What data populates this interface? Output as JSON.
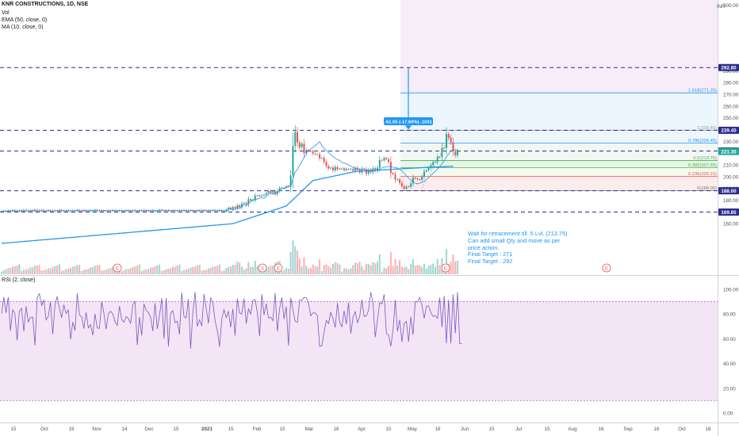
{
  "header": {
    "title": "KNR CONSTRUCTIONS, 1D, NSE",
    "vol": "Vol",
    "ema": "EMA (50, close, 0)",
    "ma": "MA (10, close, 0)",
    "currency": "INR"
  },
  "rsi_label": "RSI (2, close)",
  "measure_label": "-51.55 (-17.60%) -1031",
  "note": {
    "line1": "Wait for retracement till .5 Lvl. (213.75)",
    "line2": "Can add small Qty and move as per",
    "line3": "price action.",
    "line4": "Final Target :  271",
    "line5": "Final Target :  292"
  },
  "colors": {
    "up": "#26a69a",
    "down": "#ef5350",
    "ema": "#2196f3",
    "ma": "#2196f3",
    "level_line": "#2b2b8c",
    "rsi": "#7e57c2",
    "rsi_fill": "#f3e5f5",
    "fib_top_zone": "#f3e5f5",
    "fib_upper_zone": "#e3f2fd",
    "fib_mid_zone": "#e8f5e9",
    "fib_low_zone": "#fdecec"
  },
  "price_axis": {
    "ticks": [
      "290.00",
      "280.00",
      "270.00",
      "260.00",
      "250.00",
      "240.00",
      "230.00",
      "220.00",
      "210.00",
      "200.00",
      "190.00",
      "180.00",
      "170.00",
      "160.00"
    ],
    "tick_values": [
      290,
      280,
      270,
      260,
      250,
      240,
      230,
      220,
      210,
      200,
      190,
      180,
      170,
      160
    ],
    "top_cut": "300.00"
  },
  "price_labels": [
    {
      "text": "292.80",
      "value": 292.8,
      "color": "#2b2b8c"
    },
    {
      "text": "239.45",
      "value": 239.45,
      "color": "#2b2b8c"
    },
    {
      "text": "221.80",
      "value": 221.8,
      "color": "#2b2b8c"
    },
    {
      "text": "221.35",
      "value": 221.35,
      "color": "#26a69a"
    },
    {
      "text": "188.00",
      "value": 188.0,
      "color": "#2b2b8c"
    },
    {
      "text": "169.85",
      "value": 169.85,
      "color": "#2b2b8c"
    }
  ],
  "fib_levels": [
    {
      "text": "1.618(271.25)",
      "value": 271.25,
      "color": "#2196f3"
    },
    {
      "text": "1(239.45)",
      "value": 239.45,
      "color": "#9e9e9e"
    },
    {
      "text": "0.786(228.45)",
      "value": 228.45,
      "color": "#2196f3"
    },
    {
      "text": "0.5(213.75)",
      "value": 213.75,
      "color": "#4caf50"
    },
    {
      "text": "0.382(207.65)",
      "value": 207.65,
      "color": "#4caf50"
    },
    {
      "text": "0.236(200.15)",
      "value": 200.15,
      "color": "#ef5350"
    },
    {
      "text": "0(188.00)",
      "value": 188.0,
      "color": "#757575"
    }
  ],
  "rsi_axis": {
    "ticks": [
      "100.00",
      "80.00",
      "60.00",
      "40.00",
      "20.00",
      "0.00"
    ],
    "tick_values": [
      100,
      80,
      60,
      40,
      20,
      0
    ],
    "band_upper": 90,
    "band_lower": 10
  },
  "time_axis": {
    "labels": [
      "15",
      "Oct",
      "19",
      "Nov",
      "14",
      "Dec",
      "15",
      "2021",
      "15",
      "Feb",
      "15",
      "Mar",
      "16",
      "Apr",
      "15",
      "May",
      "18",
      "Jun",
      "15",
      "Jul",
      "15",
      "Aug",
      "16",
      "Sep",
      "16",
      "Oct",
      "18"
    ]
  },
  "events": {
    "glyph": "E",
    "split_glyph": "S"
  },
  "chart_data": {
    "type": "candlestick",
    "title": "KNR CONSTRUCTIONS, 1D, NSE",
    "ylim": [
      152,
      300
    ],
    "closes": [
      170.5,
      171.0,
      170.4,
      171.2,
      170.8,
      171.6,
      171.1,
      170.6,
      171.4,
      170.9,
      171.7,
      171.2,
      170.7,
      171.5,
      171.0,
      171.8,
      171.3,
      170.9,
      171.6,
      171.1,
      170.8,
      171.5,
      171.2,
      170.6,
      171.3,
      170.9,
      171.7,
      171.1,
      170.7,
      171.4,
      171.0,
      170.6,
      171.3,
      170.8,
      171.6,
      171.2,
      170.7,
      171.5,
      171.0,
      170.6,
      171.4,
      171.0,
      171.8,
      171.2,
      170.8,
      171.5,
      171.0,
      170.7,
      171.3,
      170.9,
      171.6,
      171.1,
      170.8,
      171.4,
      171.0,
      170.7,
      171.5,
      171.2,
      170.8,
      171.4,
      171.0,
      170.6,
      171.3,
      170.9,
      171.6,
      171.1,
      170.7,
      171.4,
      171.0,
      170.6,
      171.2,
      171.8,
      171.3,
      170.9,
      171.5,
      171.0,
      170.7,
      171.4,
      171.1,
      170.6,
      171.3,
      170.9,
      171.6,
      171.2,
      170.8,
      171.5,
      171.0,
      170.7,
      171.3,
      170.9,
      171.6,
      171.1,
      170.8,
      171.4,
      170.9,
      171.6,
      171.2,
      170.8,
      171.5,
      171.1,
      170.7,
      172.0,
      173.5,
      172.2,
      174.1,
      172.8,
      175.6,
      173.9,
      176.9,
      177.7,
      176.5,
      180.8,
      179.7,
      180.2,
      183.9,
      184.0,
      183.3,
      183.9,
      184.6,
      186.1,
      187.8,
      186.2,
      187.5,
      185.0,
      187.7,
      190.2,
      189.7,
      190.5,
      191.8,
      191.4,
      201.0,
      226.0,
      238.0,
      229.0,
      225.0,
      228.0,
      220.0,
      222.5,
      222.0,
      221.6,
      219.6,
      219.0,
      219.0,
      215.5,
      216.0,
      212.5,
      209.0,
      207.0,
      207.6,
      205.3,
      208.2,
      206.3,
      206.8,
      207.0,
      205.4,
      206.6,
      206.5,
      206.7,
      205.1,
      207.6,
      205.8,
      203.6,
      206.8,
      206.2,
      202.6,
      205.7,
      203.7,
      207.1,
      204.9,
      207.6,
      214.1,
      213.9,
      215.9,
      214.8,
      212.6,
      203.1,
      202.1,
      197.4,
      197.8,
      194.7,
      191.7,
      189.6,
      191.6,
      191.4,
      194.2,
      199.2,
      198.4,
      197.6,
      197.3,
      200.1,
      204.4,
      205.4,
      207.5,
      209.8,
      212.4,
      212.6,
      216.9,
      216.6,
      224.4,
      224.3,
      236.4,
      233.2,
      229.2,
      221.5,
      218.1,
      221.35
    ],
    "ema50": [
      143.2,
      143.4,
      143.5,
      143.7,
      143.8,
      144.0,
      144.2,
      144.3,
      144.5,
      144.7,
      144.8,
      145.0,
      145.1,
      145.3,
      145.5,
      145.6,
      145.8,
      146.0,
      146.1,
      146.3,
      146.4,
      146.6,
      146.8,
      146.9,
      147.1,
      147.2,
      147.4,
      147.6,
      147.7,
      147.9,
      148.0,
      148.2,
      148.4,
      148.5,
      148.7,
      148.9,
      149.0,
      149.2,
      149.3,
      149.5,
      149.7,
      149.8,
      150.0,
      150.1,
      150.3,
      150.5,
      150.6,
      150.8,
      150.9,
      151.1,
      151.3,
      151.4,
      151.6,
      151.8,
      151.9,
      152.1,
      152.2,
      152.4,
      152.6,
      152.7,
      152.9,
      153.0,
      153.2,
      153.4,
      153.5,
      153.7,
      153.8,
      154.0,
      154.2,
      154.3,
      154.5,
      154.7,
      154.8,
      155.0,
      155.1,
      155.3,
      155.5,
      155.6,
      155.8,
      155.9,
      156.1,
      156.3,
      156.4,
      156.6,
      156.7,
      156.9,
      157.1,
      157.2,
      157.4,
      157.6,
      157.7,
      157.9,
      158.0,
      158.2,
      158.4,
      158.5,
      158.7,
      158.8,
      159.0,
      159.2,
      159.3,
      159.5,
      159.7,
      159.8,
      160.0,
      160.6,
      161.2,
      161.9,
      162.5,
      163.1,
      163.7,
      164.4,
      165.0,
      165.6,
      166.2,
      166.9,
      167.5,
      168.1,
      168.8,
      169.4,
      170.0,
      170.6,
      171.3,
      171.9,
      172.5,
      173.1,
      173.8,
      174.4,
      175.0,
      176.8,
      178.6,
      180.4,
      182.2,
      184.0,
      185.9,
      187.7,
      189.5,
      191.3,
      193.1,
      194.9,
      196.7,
      197.1,
      197.5,
      197.9,
      198.3,
      198.7,
      199.1,
      199.5,
      199.9,
      200.3,
      200.7,
      201.1,
      201.5,
      201.9,
      202.3,
      202.7,
      203.1,
      203.5,
      203.9,
      204.3,
      204.5,
      204.6,
      204.7,
      204.8,
      204.9,
      205.0,
      205.2,
      205.3,
      205.4,
      205.5,
      205.6,
      205.7,
      205.8,
      205.9,
      206.0,
      206.1,
      206.2,
      206.4,
      206.5,
      206.6,
      206.7,
      206.8,
      206.9,
      207.0,
      207.1,
      207.2,
      207.3,
      207.4,
      207.5,
      207.6,
      207.7,
      207.8,
      207.8,
      207.9,
      208.0,
      208.1,
      208.2,
      208.3,
      208.4,
      208.5,
      208.6,
      208.7,
      208.8,
      208.8
    ],
    "ma10": [
      170.5,
      170.6,
      170.5,
      170.7,
      170.6,
      170.8,
      170.7,
      170.6,
      170.8,
      170.7,
      170.9,
      170.8,
      170.7,
      170.9,
      170.8,
      171.0,
      170.9,
      170.8,
      170.9,
      170.8,
      170.9,
      170.8,
      170.9,
      170.8,
      170.9,
      171.0,
      170.9,
      171.0,
      170.9,
      171.0,
      170.9,
      171.0,
      170.9,
      171.0,
      171.1,
      171.0,
      170.9,
      171.0,
      171.1,
      171.0,
      170.9,
      171.0,
      171.1,
      171.0,
      170.9,
      171.0,
      171.1,
      171.0,
      171.1,
      171.0,
      170.9,
      171.0,
      171.1,
      171.0,
      170.9,
      171.0,
      171.1,
      171.0,
      171.1,
      171.0,
      170.9,
      171.0,
      171.1,
      171.0,
      170.9,
      171.0,
      171.1,
      171.0,
      171.1,
      171.0,
      171.1,
      171.0,
      171.1,
      171.2,
      171.1,
      171.0,
      171.1,
      171.2,
      171.1,
      171.0,
      171.1,
      171.2,
      171.1,
      171.0,
      171.1,
      171.2,
      171.1,
      171.0,
      171.1,
      171.0,
      171.2,
      171.1,
      171.0,
      171.1,
      171.0,
      171.2,
      171.1,
      171.0,
      171.1,
      171.0,
      171.0,
      170.3,
      171.6,
      173.0,
      171.5,
      172.1,
      173.5,
      172.8,
      174.4,
      176.0,
      175.0,
      177.5,
      178.4,
      180.5,
      180.0,
      181.1,
      181.6,
      182.0,
      181.6,
      183.0,
      184.9,
      186.3,
      184.9,
      186.1,
      186.7,
      188.7,
      190.5,
      190.0,
      190.6,
      192.2,
      191.6,
      198.0,
      204.0,
      206.3,
      209.8,
      213.0,
      216.3,
      219.5,
      222.6,
      223.7,
      224.8,
      226.3,
      228.0,
      229.8,
      226.5,
      224.1,
      222.5,
      220.6,
      218.7,
      217.0,
      215.5,
      214.6,
      213.9,
      212.2,
      211.5,
      211.0,
      209.8,
      209.0,
      208.1,
      207.0,
      206.5,
      206.3,
      206.6,
      206.1,
      205.9,
      205.4,
      205.8,
      205.4,
      205.4,
      205.4,
      206.5,
      207.4,
      207.9,
      208.3,
      208.7,
      208.6,
      208.0,
      207.7,
      207.3,
      206.2,
      204.8,
      202.9,
      200.6,
      198.7,
      197.1,
      195.1,
      194.4,
      193.9,
      194.4,
      195.0,
      196.0,
      197.5,
      199.2,
      201.0,
      203.0,
      204.5,
      206.4,
      208.5,
      211.0,
      213.5,
      216.8,
      219.2,
      221.6,
      222.9,
      222.6,
      222.9
    ],
    "rsi": [
      80.3,
      93.7,
      80.9,
      93.7,
      66.4,
      83.3,
      80.3,
      58.7,
      82.1,
      84.6,
      66.0,
      86.2,
      73.5,
      77.3,
      77.6,
      54.6,
      93.2,
      96.4,
      86.9,
      91.4,
      75.2,
      78.0,
      89.6,
      63.7,
      86.8,
      94.2,
      84.7,
      76.9,
      87.4,
      80.4,
      83.2,
      59.6,
      73.5,
      66.6,
      96.7,
      79.2,
      77.7,
      68.2,
      81.4,
      68.7,
      71.4,
      62.9,
      80.2,
      68.7,
      68.3,
      90.0,
      80.7,
      67.7,
      80.2,
      82.2,
      80.0,
      73.7,
      70.9,
      86.3,
      75.4,
      73.4,
      77.9,
      76.3,
      72.5,
      87.7,
      90.1,
      54.9,
      77.5,
      62.6,
      88.1,
      83.2,
      81.2,
      77.5,
      66.2,
      88.6,
      67.8,
      79.0,
      92.9,
      60.0,
      92.9,
      53.7,
      80.8,
      82.7,
      72.9,
      74.1,
      63.6,
      97.4,
      77.9,
      76.7,
      91.9,
      52.0,
      80.8,
      97.8,
      70.0,
      75.3,
      70.2,
      95.9,
      84.3,
      72.4,
      93.0,
      89.1,
      74.4,
      66.6,
      53.5,
      76.1,
      83.4,
      77.1,
      82.2,
      69.3,
      84.2,
      62.4,
      92.5,
      80.9,
      79.9,
      92.5,
      72.3,
      84.1,
      79.9,
      91.2,
      91.6,
      80.9,
      62.1,
      95.9,
      79.2,
      88.4,
      76.7,
      77.4,
      74.6,
      96.8,
      66.1,
      84.0,
      93.3,
      75.9,
      86.0,
      54.4,
      93.1,
      83.2,
      73.9,
      73.3,
      91.3,
      90.9,
      93.4,
      93.1,
      88.7,
      78.6,
      80.8,
      80.8,
      78.6,
      53.9,
      54.1,
      65.3,
      74.7,
      72.1,
      81.4,
      76.6,
      69.0,
      88.8,
      73.1,
      69.8,
      82.5,
      71.8,
      89.2,
      64.2,
      77.2,
      81.9,
      73.1,
      77.6,
      91.5,
      78.0,
      78.6,
      83.0,
      97.6,
      89.2,
      61.2,
      75.1,
      89.0,
      88.2,
      95.7,
      64.3,
      62.9,
      53.9,
      67.2,
      91.2,
      65.8,
      75.3,
      57.4,
      72.4,
      74.1,
      57.7,
      77.8,
      63.2,
      90.0,
      89.7,
      93.5,
      87.1,
      76.5,
      86.3,
      86.5,
      81.1,
      77.8,
      78.8,
      76.4,
      93.2,
      69.3,
      94.7,
      56.3,
      91.5,
      56.3,
      95.9,
      64.5,
      97.6,
      56.0,
      56.0
    ],
    "x_labels": [
      "15",
      "Oct",
      "19",
      "Nov",
      "14",
      "Dec",
      "15",
      "2021",
      "15",
      "Feb",
      "15",
      "Mar",
      "16",
      "Apr",
      "15",
      "May",
      "18",
      "Jun",
      "15",
      "Jul",
      "15",
      "Aug",
      "16",
      "Sep",
      "16",
      "Oct",
      "18"
    ],
    "ylabel": "INR"
  }
}
